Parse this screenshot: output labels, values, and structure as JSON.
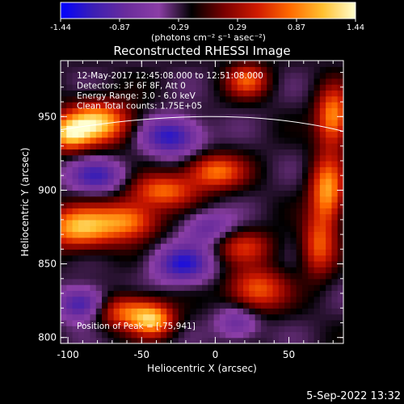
{
  "colorbar": {
    "tick_labels": [
      "-1.44",
      "-0.87",
      "-0.29",
      "0.29",
      "0.87",
      "1.44"
    ],
    "units": "(photons cm⁻² s⁻¹ asec⁻²)",
    "range": [
      -1.44,
      1.44
    ],
    "colormap": [
      "#0000ff",
      "#3c1fb4",
      "#6a2c9c",
      "#8b3ea6",
      "#000000",
      "#7a0000",
      "#d01a00",
      "#ff6a00",
      "#ffc030",
      "#ffffd0"
    ]
  },
  "chart_data": {
    "type": "heatmap",
    "title": "Reconstructed RHESSI Image",
    "xlabel": "Heliocentric X (arcsec)",
    "ylabel": "Heliocentric Y (arcsec)",
    "xlim": [
      -105,
      87
    ],
    "ylim": [
      796,
      988
    ],
    "x_ticks": [
      -100,
      -50,
      0,
      50
    ],
    "y_ticks": [
      800,
      850,
      900,
      950
    ],
    "x_tick_labels": [
      "-100",
      "-50",
      "0",
      "50"
    ],
    "y_tick_labels": [
      "800",
      "850",
      "900",
      "950"
    ],
    "annotations": [
      "12-May-2017 12:45:08.000 to 12:51:08.000",
      "Detectors: 3F 6F 8F, Att 0",
      "Energy Range: 3.0 - 6.0 keV",
      "Clean     Total counts: 1.75E+05"
    ],
    "peak_label": "Position of Peak = [-75,941]",
    "peak": [
      -75,
      941
    ],
    "limb_arc": {
      "y_at_x_min": 941,
      "y_at_x_max": 940,
      "y_top": 950,
      "x_at_top": 0
    },
    "sources": [
      {
        "x": -80,
        "y": 946,
        "amp": 1.44,
        "sx": 16,
        "sy": 10
      },
      {
        "x": -100,
        "y": 938,
        "amp": 1.1,
        "sx": 10,
        "sy": 8
      },
      {
        "x": 22,
        "y": 975,
        "amp": 0.9,
        "sx": 10,
        "sy": 8
      },
      {
        "x": -35,
        "y": 900,
        "amp": 1.0,
        "sx": 16,
        "sy": 8
      },
      {
        "x": 0,
        "y": 913,
        "amp": 1.05,
        "sx": 14,
        "sy": 8
      },
      {
        "x": -92,
        "y": 875,
        "amp": 1.35,
        "sx": 18,
        "sy": 10
      },
      {
        "x": -58,
        "y": 880,
        "amp": 1.0,
        "sx": 14,
        "sy": 9
      },
      {
        "x": 20,
        "y": 862,
        "amp": 0.7,
        "sx": 14,
        "sy": 8
      },
      {
        "x": 28,
        "y": 833,
        "amp": 1.0,
        "sx": 14,
        "sy": 10
      },
      {
        "x": -62,
        "y": 818,
        "amp": 1.0,
        "sx": 14,
        "sy": 8
      },
      {
        "x": -42,
        "y": 812,
        "amp": 1.2,
        "sx": 10,
        "sy": 8
      },
      {
        "x": 80,
        "y": 950,
        "amp": 1.2,
        "sx": 8,
        "sy": 14
      },
      {
        "x": 76,
        "y": 900,
        "amp": 1.25,
        "sx": 8,
        "sy": 16
      },
      {
        "x": 70,
        "y": 862,
        "amp": 0.9,
        "sx": 8,
        "sy": 14
      },
      {
        "x": -30,
        "y": 937,
        "amp": -1.0,
        "sx": 14,
        "sy": 9
      },
      {
        "x": -80,
        "y": 910,
        "amp": -0.8,
        "sx": 14,
        "sy": 8
      },
      {
        "x": -22,
        "y": 850,
        "amp": -0.95,
        "sx": 14,
        "sy": 9
      },
      {
        "x": -90,
        "y": 823,
        "amp": -0.95,
        "sx": 12,
        "sy": 8
      },
      {
        "x": 15,
        "y": 810,
        "amp": -0.6,
        "sx": 10,
        "sy": 8
      },
      {
        "x": -5,
        "y": 875,
        "amp": -0.6,
        "sx": 12,
        "sy": 8
      }
    ]
  },
  "footer": {
    "timestamp": "5-Sep-2022 13:32"
  }
}
